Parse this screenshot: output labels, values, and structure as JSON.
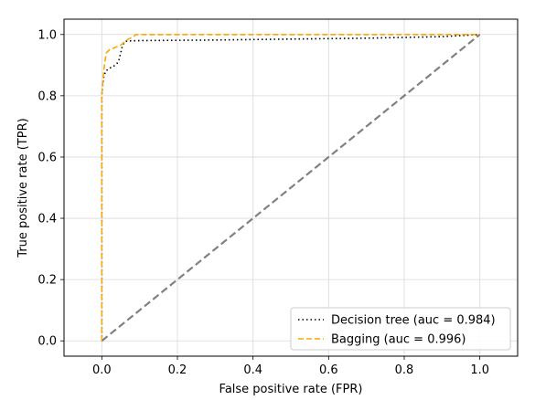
{
  "chart_data": {
    "type": "line",
    "title": "",
    "xlabel": "False positive rate (FPR)",
    "ylabel": "True positive rate (TPR)",
    "xlim": [
      -0.1,
      1.1
    ],
    "ylim": [
      -0.05,
      1.05
    ],
    "xticks": [
      0.0,
      0.2,
      0.4,
      0.6,
      0.8,
      1.0
    ],
    "yticks": [
      0.0,
      0.2,
      0.4,
      0.6,
      0.8,
      1.0
    ],
    "xtick_labels": [
      "0.0",
      "0.2",
      "0.4",
      "0.6",
      "0.8",
      "1.0"
    ],
    "ytick_labels": [
      "0.0",
      "0.2",
      "0.4",
      "0.6",
      "0.8",
      "1.0"
    ],
    "grid": true,
    "legend_position": "lower-right",
    "series": [
      {
        "name": "Decision tree (auc = 0.984)",
        "style": "dotted",
        "color": "#000000",
        "x": [
          0.0,
          0.0,
          0.0,
          0.002,
          0.005,
          0.01,
          0.02,
          0.03,
          0.04,
          0.045,
          0.05,
          0.055,
          0.06,
          0.065,
          0.07,
          0.1,
          0.3,
          0.5,
          0.7,
          0.9,
          1.0
        ],
        "y": [
          0.0,
          0.78,
          0.8,
          0.83,
          0.86,
          0.88,
          0.89,
          0.895,
          0.905,
          0.915,
          0.94,
          0.965,
          0.975,
          0.978,
          0.979,
          0.98,
          0.982,
          0.985,
          0.988,
          0.993,
          1.0
        ]
      },
      {
        "name": "Bagging (auc = 0.996)",
        "style": "dashed",
        "color": "#ffa500",
        "x": [
          0.0,
          0.0,
          0.003,
          0.005,
          0.008,
          0.012,
          0.02,
          0.03,
          0.04,
          0.05,
          0.06,
          0.07,
          0.08,
          0.09,
          0.1,
          0.3,
          0.5,
          0.7,
          0.9,
          1.0
        ],
        "y": [
          0.0,
          0.8,
          0.85,
          0.88,
          0.91,
          0.94,
          0.95,
          0.955,
          0.96,
          0.965,
          0.975,
          0.985,
          0.99,
          1.0,
          1.0,
          1.0,
          1.0,
          1.0,
          1.0,
          1.0
        ]
      }
    ],
    "reference_line": {
      "x": [
        0.0,
        1.0
      ],
      "y": [
        0.0,
        1.0
      ],
      "style": "dashed",
      "color": "#808080"
    }
  }
}
